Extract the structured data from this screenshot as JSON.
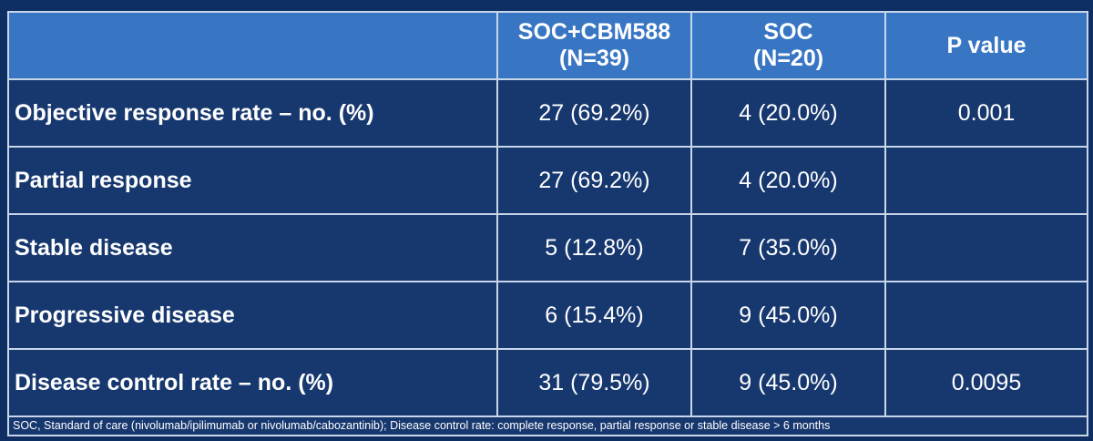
{
  "table": {
    "headers": [
      "",
      "SOC+CBM588\n(N=39)",
      "SOC\n(N=20)",
      "P value"
    ],
    "header_lines": [
      [],
      [
        "SOC+CBM588",
        "(N=39)"
      ],
      [
        "SOC",
        "(N=20)"
      ],
      [
        "P value"
      ]
    ],
    "rows": [
      {
        "label": "Objective response rate – no. (%)",
        "soc_cbm588": "27 (69.2%)",
        "soc": "4 (20.0%)",
        "p_value": "0.001"
      },
      {
        "label": "Partial response",
        "soc_cbm588": "27 (69.2%)",
        "soc": "4 (20.0%)",
        "p_value": ""
      },
      {
        "label": "Stable disease",
        "soc_cbm588": "5 (12.8%)",
        "soc": "7 (35.0%)",
        "p_value": ""
      },
      {
        "label": "Progressive disease",
        "soc_cbm588": "6 (15.4%)",
        "soc": "9 (45.0%)",
        "p_value": ""
      },
      {
        "label": "Disease control rate – no. (%)",
        "soc_cbm588": "31 (79.5%)",
        "soc": "9 (45.0%)",
        "p_value": "0.0095"
      }
    ],
    "footnote": "SOC, Standard of care (nivolumab/ipilimumab or nivolumab/cabozantinib); Disease control rate: complete response, partial response or stable disease > 6 months"
  },
  "colors": {
    "background": "#0f2f63",
    "header_fill": "#3876c4",
    "body_fill": "#17386f",
    "grid_line": "#c8d6ea",
    "text": "#ffffff"
  }
}
